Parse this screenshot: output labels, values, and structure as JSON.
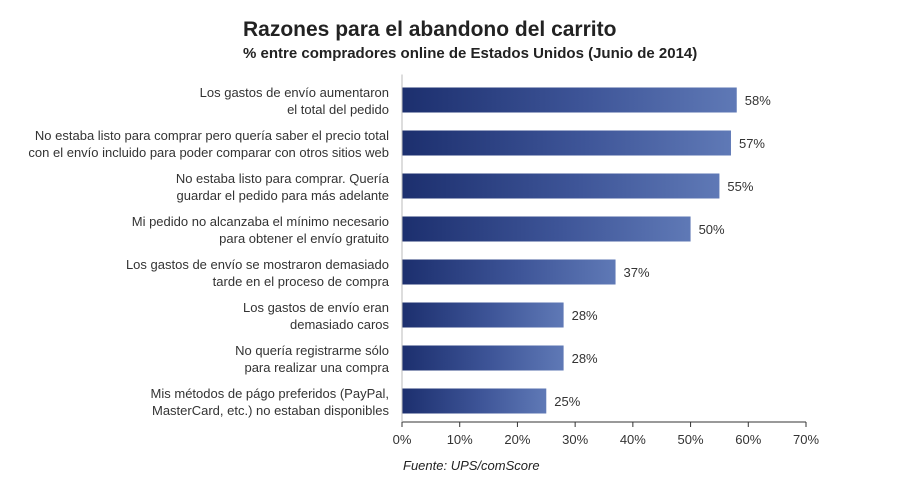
{
  "chart_data": {
    "type": "bar",
    "orientation": "horizontal",
    "title": "Razones para el abandono del carrito",
    "subtitle": "% entre compradores online de Estados Unidos (Junio de 2014)",
    "source": "Fuente: UPS/comScore",
    "categories": [
      [
        "Los gastos de envío aumentaron",
        "el total del pedido"
      ],
      [
        "No estaba listo para comprar pero quería saber el precio total",
        "con el envío incluido para poder comparar con otros sitios web"
      ],
      [
        "No estaba listo para comprar. Quería",
        "guardar el pedido para más adelante"
      ],
      [
        "Mi pedido no alcanzaba el mínimo necesario",
        "para obtener el envío gratuito"
      ],
      [
        "Los gastos de envío se mostraron demasiado",
        "tarde en el proceso de compra"
      ],
      [
        "Los gastos de envío eran",
        "demasiado caros"
      ],
      [
        "No quería registrarme sólo",
        "para realizar una compra"
      ],
      [
        "Mis métodos de págo preferidos  (PayPal,",
        "MasterCard, etc.) no estaban disponibles"
      ]
    ],
    "values": [
      58,
      57,
      55,
      50,
      37,
      28,
      28,
      25
    ],
    "value_labels": [
      "58%",
      "57%",
      "55%",
      "50%",
      "37%",
      "28%",
      "28%",
      "25%"
    ],
    "xlim": [
      0,
      70
    ],
    "xticks": [
      "0%",
      "10%",
      "20%",
      "30%",
      "40%",
      "50%",
      "60%",
      "70%"
    ],
    "grid": false,
    "colors": {
      "bar_dark": "#1c2f6e",
      "bar_light": "#5f79b6",
      "axis": "#333333"
    }
  }
}
